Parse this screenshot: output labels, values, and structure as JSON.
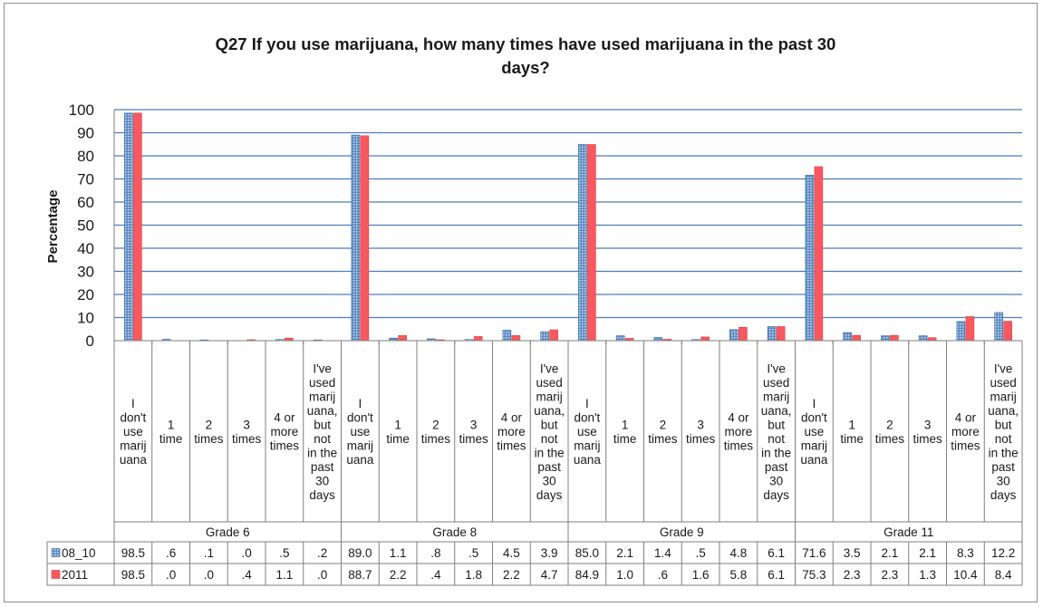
{
  "chart_data": {
    "type": "bar",
    "title": "Q27 If you use marijuana, how many times have used marijuana in the past 30 days?",
    "title_lines": [
      "Q27 If you use marijuana, how many times have used marijuana in the past 30",
      "days?"
    ],
    "ylabel": "Percentage",
    "ylim": [
      0,
      100
    ],
    "yticks": [
      0,
      10,
      20,
      30,
      40,
      50,
      60,
      70,
      80,
      90,
      100
    ],
    "grid": true,
    "legend_placement": "data table",
    "groups": [
      {
        "name": "Grade 6",
        "categories": [
          0,
          1,
          2,
          3,
          4,
          5
        ]
      },
      {
        "name": "Grade 8",
        "categories": [
          6,
          7,
          8,
          9,
          10,
          11
        ]
      },
      {
        "name": "Grade 9",
        "categories": [
          12,
          13,
          14,
          15,
          16,
          17
        ]
      },
      {
        "name": "Grade 11",
        "categories": [
          18,
          19,
          20,
          21,
          22,
          23
        ]
      }
    ],
    "category_labels": [
      [
        "I",
        "don't",
        "use",
        "marij",
        "uana"
      ],
      [
        "1",
        "time"
      ],
      [
        "2",
        "times"
      ],
      [
        "3",
        "times"
      ],
      [
        "4 or",
        "more",
        "times"
      ],
      [
        "I've",
        "used",
        "marij",
        "uana,",
        "but",
        "not",
        "in the",
        "past",
        "30",
        "days"
      ]
    ],
    "series": [
      {
        "name": "08_10",
        "color": "#4f81bd",
        "values": [
          98.5,
          0.6,
          0.1,
          0.0,
          0.5,
          0.2,
          89.0,
          1.1,
          0.8,
          0.5,
          4.5,
          3.9,
          85.0,
          2.1,
          1.4,
          0.5,
          4.8,
          6.1,
          71.6,
          3.5,
          2.1,
          2.1,
          8.3,
          12.2
        ]
      },
      {
        "name": "2011",
        "color": "#f8585e",
        "values": [
          98.5,
          0.0,
          0.0,
          0.4,
          1.1,
          0.0,
          88.7,
          2.2,
          0.4,
          1.8,
          2.2,
          4.7,
          84.9,
          1.0,
          0.6,
          1.6,
          5.8,
          6.1,
          75.3,
          2.3,
          2.3,
          1.3,
          10.4,
          8.4
        ]
      }
    ],
    "table_values": {
      "08_10": [
        "98.5",
        ".6",
        ".1",
        ".0",
        ".5",
        ".2",
        "89.0",
        "1.1",
        ".8",
        ".5",
        "4.5",
        "3.9",
        "85.0",
        "2.1",
        "1.4",
        ".5",
        "4.8",
        "6.1",
        "71.6",
        "3.5",
        "2.1",
        "2.1",
        "8.3",
        "12.2"
      ],
      "2011": [
        "98.5",
        ".0",
        ".0",
        ".4",
        "1.1",
        ".0",
        "88.7",
        "2.2",
        ".4",
        "1.8",
        "2.2",
        "4.7",
        "84.9",
        "1.0",
        ".6",
        "1.6",
        "5.8",
        "6.1",
        "75.3",
        "2.3",
        "2.3",
        "1.3",
        "10.4",
        "8.4"
      ]
    }
  }
}
